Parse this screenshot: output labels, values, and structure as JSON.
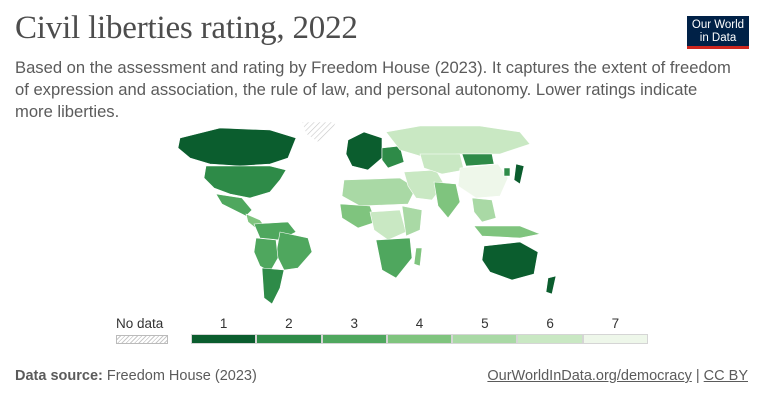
{
  "header": {
    "title": "Civil liberties rating, 2022",
    "subtitle": "Based on the assessment and rating by Freedom House (2023). It captures the extent of freedom of expression and association, the rule of law, and personal autonomy. Lower ratings indicate more liberties.",
    "logo_line1": "Our World",
    "logo_line2": "in Data"
  },
  "legend": {
    "no_data_label": "No data",
    "ticks": [
      "1",
      "2",
      "3",
      "4",
      "5",
      "6",
      "7"
    ],
    "colors": [
      "#0b5d2e",
      "#2e8b48",
      "#4fa75e",
      "#7fc47e",
      "#a9d9a5",
      "#c9e8c3",
      "#eef7ea"
    ]
  },
  "footer": {
    "source_label": "Data source:",
    "source_text": "Freedom House (2023)",
    "link_text": "OurWorldInData.org/democracy",
    "separator": "|",
    "license": "CC BY"
  },
  "map_regions": [
    {
      "name": "canada",
      "rating": 1
    },
    {
      "name": "usa",
      "rating": 2
    },
    {
      "name": "mexico",
      "rating": 3
    },
    {
      "name": "central-america",
      "rating": 4
    },
    {
      "name": "south-america-north",
      "rating": 3
    },
    {
      "name": "brazil",
      "rating": 3
    },
    {
      "name": "andes",
      "rating": 3
    },
    {
      "name": "southern-cone",
      "rating": 2
    },
    {
      "name": "greenland",
      "rating": 0
    },
    {
      "name": "western-europe",
      "rating": 1
    },
    {
      "name": "eastern-europe",
      "rating": 2
    },
    {
      "name": "russia",
      "rating": 6
    },
    {
      "name": "north-africa",
      "rating": 5
    },
    {
      "name": "west-africa",
      "rating": 4
    },
    {
      "name": "central-africa",
      "rating": 6
    },
    {
      "name": "east-africa",
      "rating": 5
    },
    {
      "name": "southern-africa",
      "rating": 3
    },
    {
      "name": "middle-east",
      "rating": 6
    },
    {
      "name": "central-asia",
      "rating": 6
    },
    {
      "name": "mongolia",
      "rating": 2
    },
    {
      "name": "china",
      "rating": 7
    },
    {
      "name": "india",
      "rating": 4
    },
    {
      "name": "southeast-asia",
      "rating": 5
    },
    {
      "name": "japan",
      "rating": 1
    },
    {
      "name": "korea",
      "rating": 2
    },
    {
      "name": "indonesia",
      "rating": 4
    },
    {
      "name": "australia",
      "rating": 1
    },
    {
      "name": "new-zealand",
      "rating": 1
    },
    {
      "name": "madagascar",
      "rating": 4
    }
  ]
}
